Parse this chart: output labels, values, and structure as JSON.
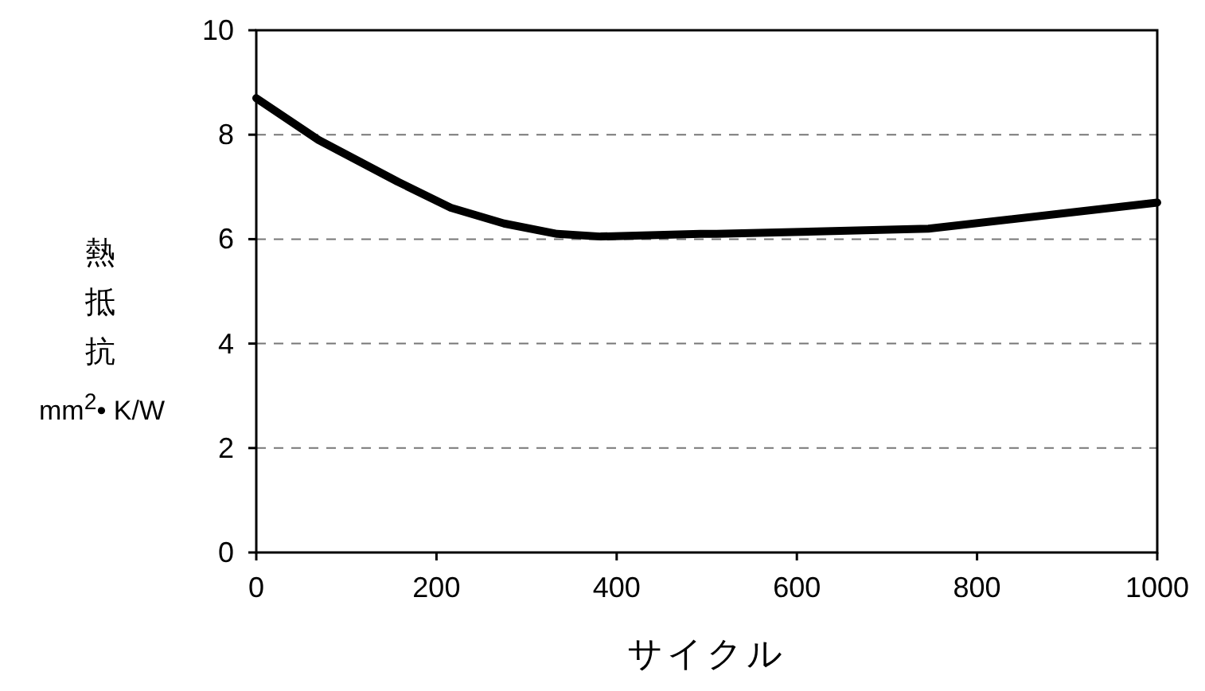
{
  "chart_data": {
    "type": "line",
    "xlabel": "サイクル",
    "ylabel": "熱抵抗 mm$^{2}$• K/W",
    "x": [
      0,
      69,
      157,
      216,
      275,
      334,
      382,
      493,
      511,
      746,
      1000
    ],
    "series": [
      {
        "color": "#000000",
        "values": [
          8.7,
          7.9,
          7.1,
          6.6,
          6.3,
          6.1,
          6.05,
          6.1,
          6.1,
          6.2,
          6.7
        ]
      }
    ],
    "xlim": [
      0,
      1000
    ],
    "xticks": [
      0,
      200,
      400,
      600,
      800,
      1000
    ],
    "ylim": [
      0,
      10
    ],
    "yticks": [
      0,
      2,
      4,
      6,
      8,
      10
    ],
    "grid": "y",
    "marker": "none",
    "line_style": "solid"
  }
}
